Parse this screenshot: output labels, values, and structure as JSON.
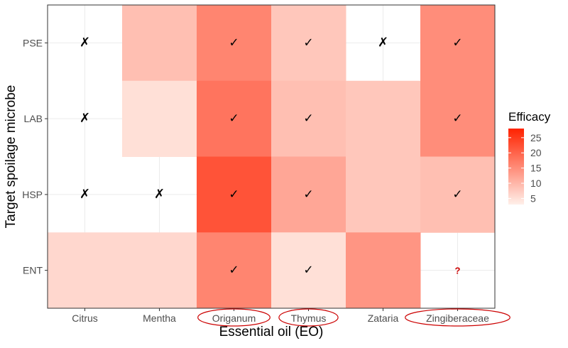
{
  "chart_data": {
    "type": "heatmap",
    "title": "",
    "xlabel": "Essential oil (EO)",
    "ylabel": "Target spoilage microbe",
    "x_categories": [
      "Citrus",
      "Mentha",
      "Origanum",
      "Thymus",
      "Zataria",
      "Zingiberaceae"
    ],
    "y_categories": [
      "PSE",
      "LAB",
      "HSP",
      "ENT"
    ],
    "highlighted_x_categories": [
      "Origanum",
      "Thymus",
      "Zingiberaceae"
    ],
    "highlight_color": "#cc0000",
    "color_scale": {
      "label": "Efficacy",
      "low_color": "#fff0ea",
      "high_color": "#ff2200",
      "min": 3,
      "max": 28,
      "ticks": [
        5,
        10,
        15,
        20,
        25
      ]
    },
    "grid": true,
    "legend_position": "right",
    "cells": [
      {
        "x": "Citrus",
        "y": "PSE",
        "value": null,
        "mark": "✗"
      },
      {
        "x": "Mentha",
        "y": "PSE",
        "value": 9,
        "mark": ""
      },
      {
        "x": "Origanum",
        "y": "PSE",
        "value": 16,
        "mark": "✓"
      },
      {
        "x": "Thymus",
        "y": "PSE",
        "value": 8,
        "mark": "✓"
      },
      {
        "x": "Zataria",
        "y": "PSE",
        "value": null,
        "mark": "✗"
      },
      {
        "x": "Zingiberaceae",
        "y": "PSE",
        "value": 15,
        "mark": "✓"
      },
      {
        "x": "Citrus",
        "y": "LAB",
        "value": null,
        "mark": "✗"
      },
      {
        "x": "Mentha",
        "y": "LAB",
        "value": 5,
        "mark": ""
      },
      {
        "x": "Origanum",
        "y": "LAB",
        "value": 18,
        "mark": "✓"
      },
      {
        "x": "Thymus",
        "y": "LAB",
        "value": 9,
        "mark": "✓"
      },
      {
        "x": "Zataria",
        "y": "LAB",
        "value": 8,
        "mark": ""
      },
      {
        "x": "Zingiberaceae",
        "y": "LAB",
        "value": 15,
        "mark": "✓"
      },
      {
        "x": "Citrus",
        "y": "HSP",
        "value": null,
        "mark": "✗"
      },
      {
        "x": "Mentha",
        "y": "HSP",
        "value": null,
        "mark": "✗"
      },
      {
        "x": "Origanum",
        "y": "HSP",
        "value": 22,
        "mark": "✓"
      },
      {
        "x": "Thymus",
        "y": "HSP",
        "value": 12,
        "mark": "✓"
      },
      {
        "x": "Zataria",
        "y": "HSP",
        "value": 8,
        "mark": ""
      },
      {
        "x": "Zingiberaceae",
        "y": "HSP",
        "value": 9,
        "mark": "✓"
      },
      {
        "x": "Citrus",
        "y": "ENT",
        "value": 6,
        "mark": ""
      },
      {
        "x": "Mentha",
        "y": "ENT",
        "value": 6,
        "mark": ""
      },
      {
        "x": "Origanum",
        "y": "ENT",
        "value": 16,
        "mark": "✓"
      },
      {
        "x": "Thymus",
        "y": "ENT",
        "value": 5,
        "mark": "✓"
      },
      {
        "x": "Zataria",
        "y": "ENT",
        "value": 14,
        "mark": ""
      },
      {
        "x": "Zingiberaceae",
        "y": "ENT",
        "value": null,
        "mark": "?"
      }
    ]
  }
}
